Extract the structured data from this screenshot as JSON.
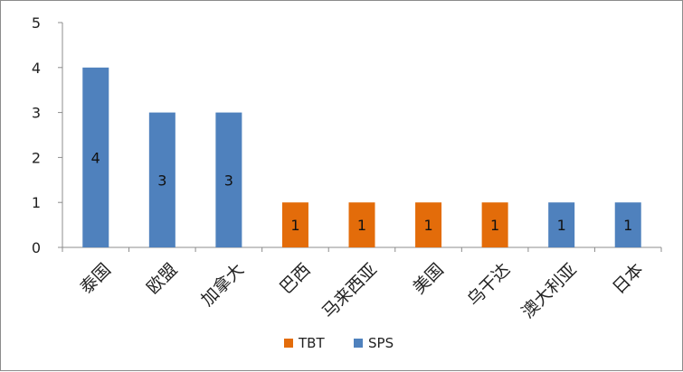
{
  "chart_data": {
    "type": "bar",
    "title": "",
    "xlabel": "",
    "ylabel": "",
    "ylim": [
      0,
      5
    ],
    "yticks": [
      0,
      1,
      2,
      3,
      4,
      5
    ],
    "grid": false,
    "legend_position": "bottom",
    "categories": [
      "泰国",
      "欧盟",
      "加拿大",
      "巴西",
      "马来西亚",
      "美国",
      "乌干达",
      "澳大利亚",
      "日本"
    ],
    "values": [
      4,
      3,
      3,
      1,
      1,
      1,
      1,
      1,
      1
    ],
    "group": [
      "SPS",
      "SPS",
      "SPS",
      "TBT",
      "TBT",
      "TBT",
      "TBT",
      "SPS",
      "SPS"
    ],
    "data_labels": [
      "4",
      "3",
      "3",
      "1",
      "1",
      "1",
      "1",
      "1",
      "1"
    ],
    "series": [
      {
        "name": "TBT",
        "color": "#E36C0A"
      },
      {
        "name": "SPS",
        "color": "#4F81BD"
      }
    ]
  }
}
